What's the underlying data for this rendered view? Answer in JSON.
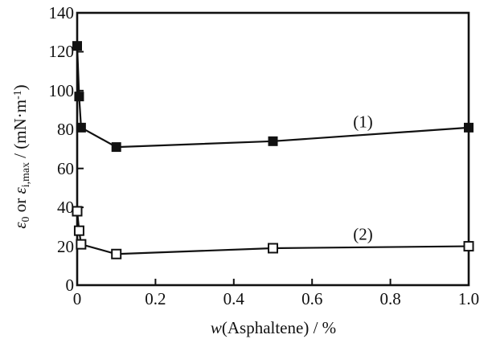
{
  "chart_data": {
    "type": "line",
    "title": "",
    "xlabel": "w(Asphaltene) / %",
    "ylabel": "e0 or e(i,max) / (mN*m^-1)",
    "xlabel_parts": [
      {
        "text": "w",
        "italic": true
      },
      {
        "text": "(Asphaltene) / %"
      }
    ],
    "ylabel_parts": [
      {
        "text": "ε",
        "italic": true
      },
      {
        "text": "0",
        "sub": true
      },
      {
        "text": " or "
      },
      {
        "text": "ε",
        "italic": true
      },
      {
        "text": "i,max",
        "sub": true
      },
      {
        "text": " / (mN·m"
      },
      {
        "text": "-1",
        "sup": true
      },
      {
        "text": ")"
      }
    ],
    "x": [
      0,
      0.005,
      0.01,
      0.1,
      0.5,
      1.0
    ],
    "series": [
      {
        "name": "series-1",
        "label": "(1)",
        "marker": "filled-square",
        "values": [
          123,
          97,
          81,
          71,
          74,
          81
        ],
        "annotation": {
          "x": 0.73,
          "y": 84
        }
      },
      {
        "name": "series-2",
        "label": "(2)",
        "marker": "open-square",
        "values": [
          38,
          28,
          21,
          16,
          19,
          20
        ],
        "annotation": {
          "x": 0.73,
          "y": 26
        }
      }
    ],
    "xlim": [
      0,
      1.0
    ],
    "ylim": [
      0,
      140
    ],
    "xticks": [
      0,
      0.2,
      0.4,
      0.6,
      0.8,
      1.0
    ],
    "xtick_labels": [
      "0",
      "0.2",
      "0.4",
      "0.6",
      "0.8",
      "1.0"
    ],
    "yticks": [
      0,
      20,
      40,
      60,
      80,
      100,
      120,
      140
    ],
    "ytick_labels": [
      "0",
      "20",
      "40",
      "60",
      "80",
      "100",
      "120",
      "140"
    ],
    "grid": false,
    "legend_position": "none",
    "colors": {
      "foreground": "#111111",
      "background": "#ffffff"
    }
  }
}
